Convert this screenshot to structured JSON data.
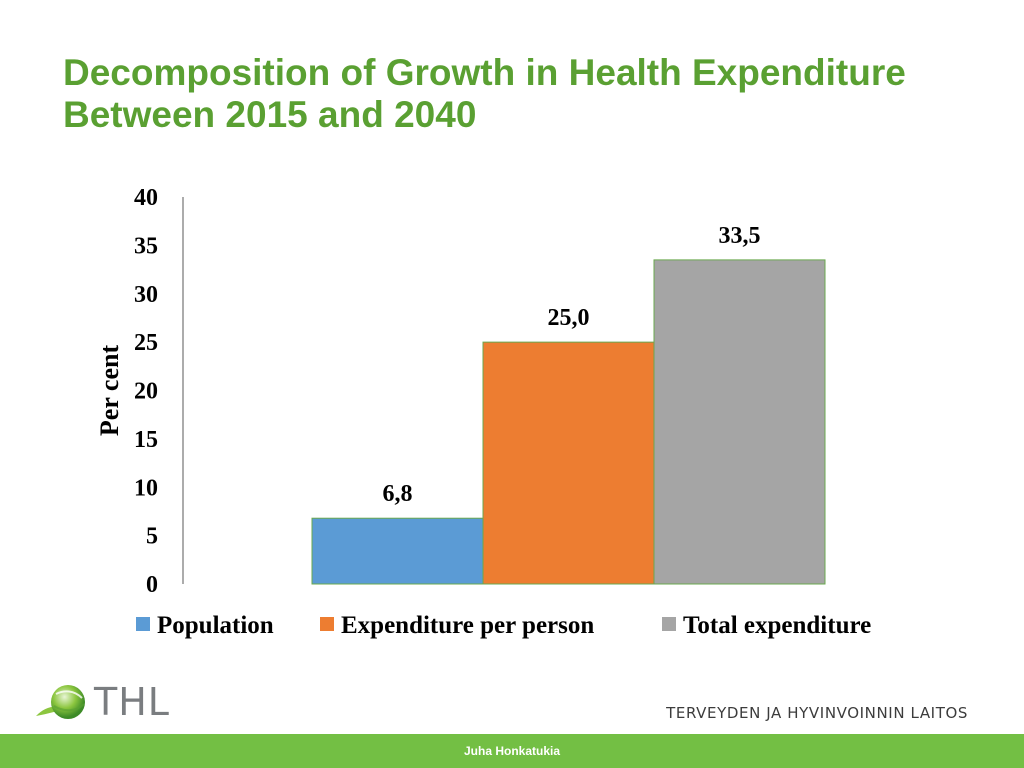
{
  "slide": {
    "title": "Decomposition of Growth in Health Expenditure Between 2015 and 2040",
    "logo_text": "THL",
    "org_name": "TERVEYDEN JA HYVINVOINNIN LAITOS",
    "author": "Juha Honkatukia"
  },
  "chart_data": {
    "type": "bar",
    "title": "",
    "xlabel": "",
    "ylabel": "Per cent",
    "ylim": [
      0,
      40
    ],
    "yticks": [
      0,
      5,
      10,
      15,
      20,
      25,
      30,
      35,
      40
    ],
    "grid": false,
    "legend_position": "bottom",
    "series": [
      {
        "name": "Population",
        "value": 6.8,
        "label": "6,8",
        "color": "#5b9bd5"
      },
      {
        "name": "Expenditure per person",
        "value": 25.0,
        "label": "25,0",
        "color": "#ed7d31"
      },
      {
        "name": "Total expenditure",
        "value": 33.5,
        "label": "33,5",
        "color": "#a5a5a5"
      }
    ]
  },
  "colors": {
    "title": "#5aa032",
    "footer": "#73bf44",
    "bar_edge": "#6aa84f"
  },
  "icons": {
    "logo": "thl-leaf-globe-icon"
  }
}
